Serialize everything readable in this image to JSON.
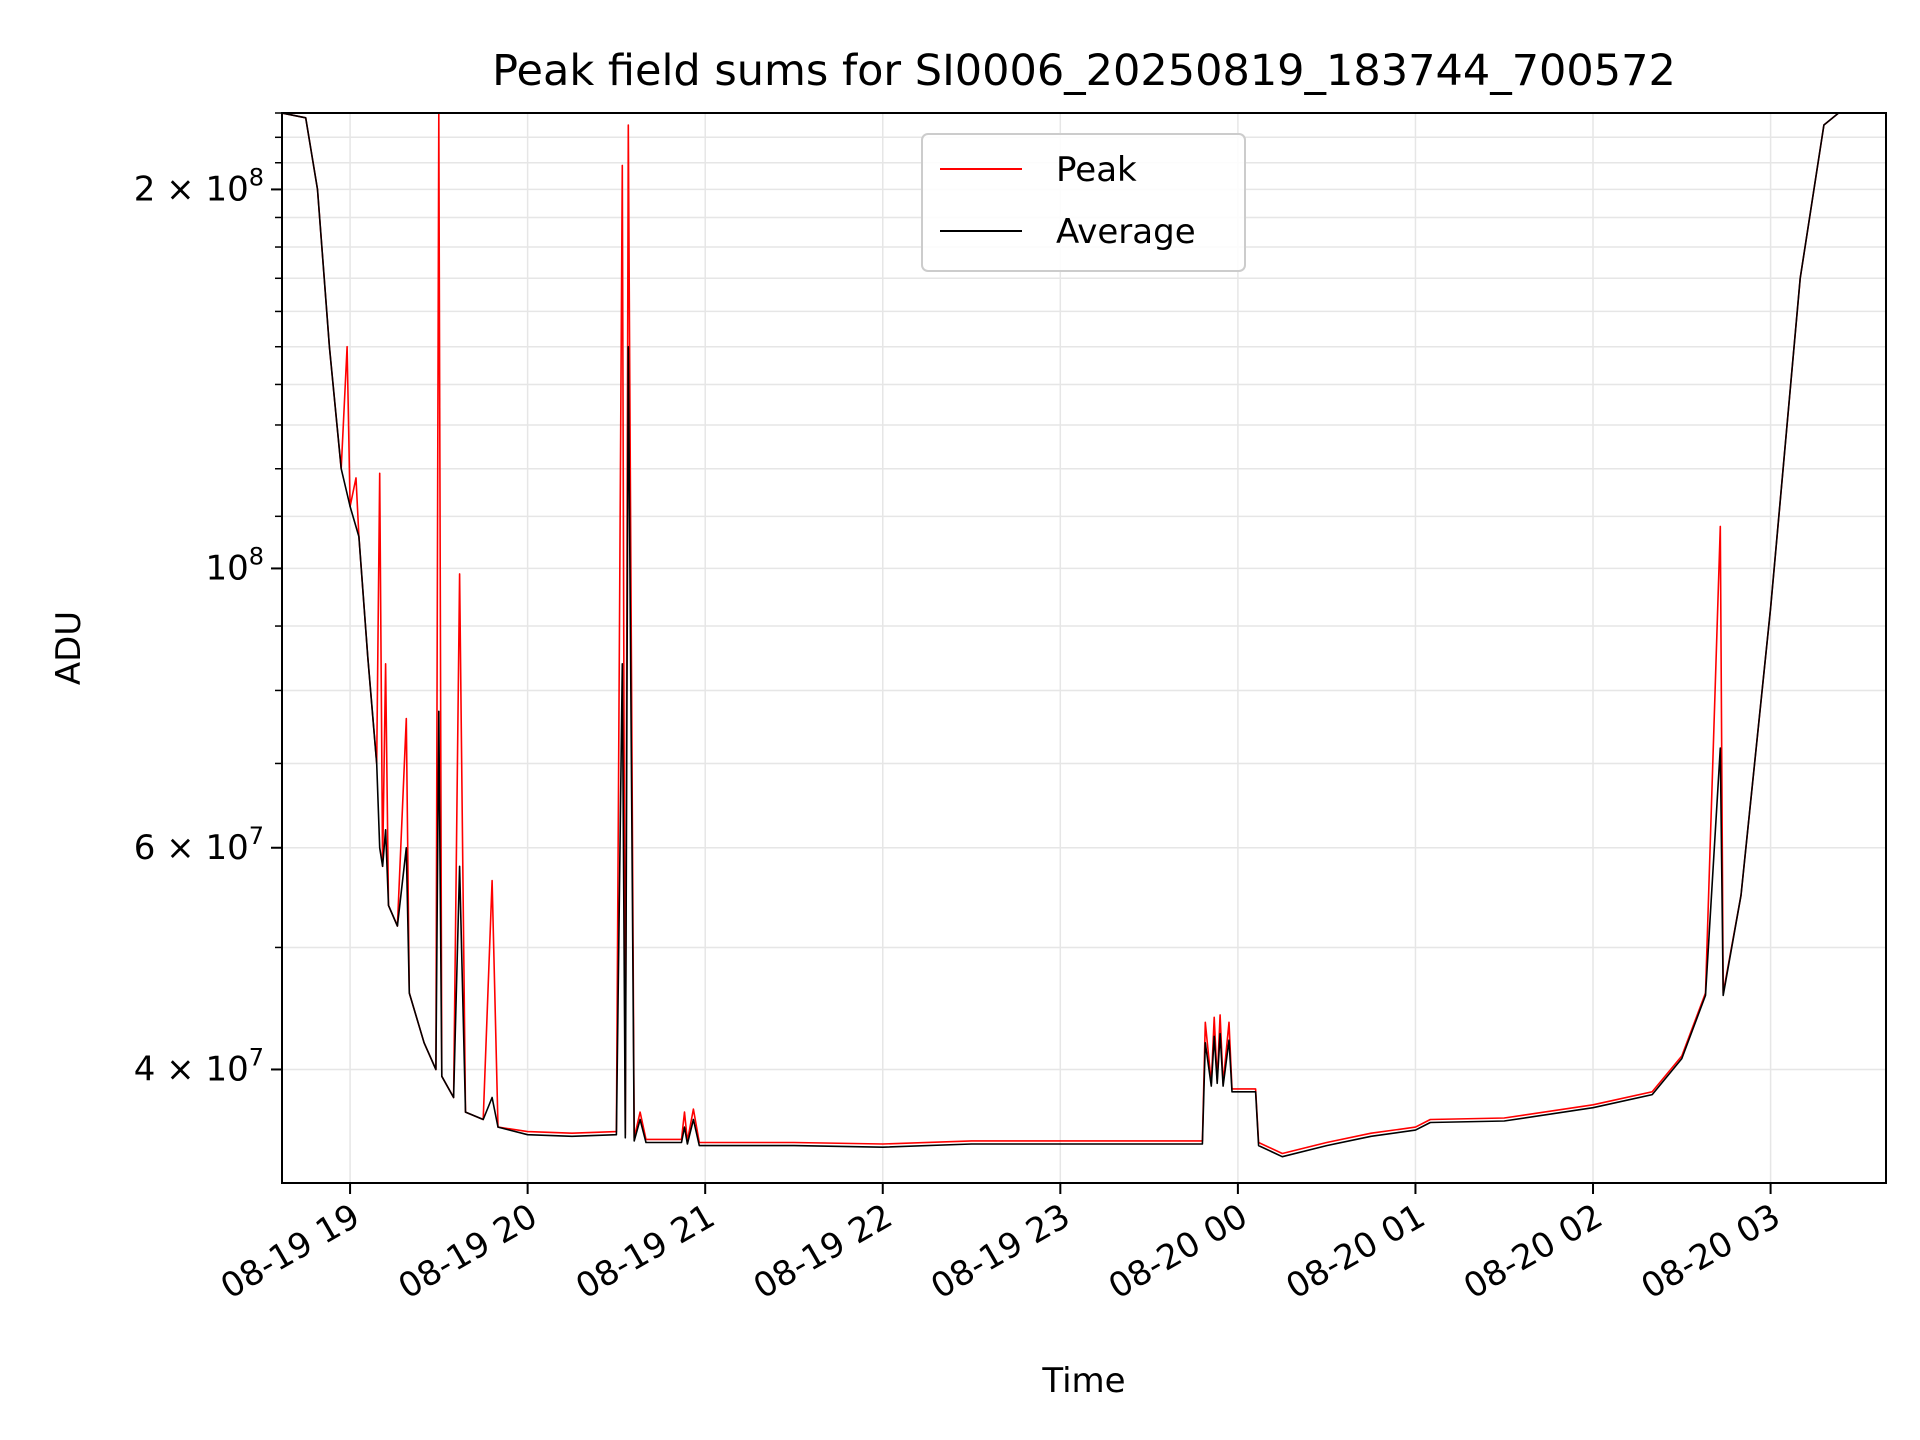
{
  "chart_data": {
    "type": "line",
    "title": "Peak field sums for SI0006_20250819_183744_700572",
    "xlabel": "Time",
    "ylabel": "ADU",
    "y_scale": "log",
    "ylim": [
      32500000,
      230000000
    ],
    "xlim": [
      "08-19 18:37",
      "08-20 03:39"
    ],
    "grid": true,
    "legend_position": "top-center",
    "x_ticks": [
      "08-19 19",
      "08-19 20",
      "08-19 21",
      "08-19 22",
      "08-19 23",
      "08-20 00",
      "08-20 01",
      "08-20 02",
      "08-20 03"
    ],
    "y_ticks": [
      {
        "value": 40000000,
        "mantissa": "4",
        "exponent": "7"
      },
      {
        "value": 60000000,
        "mantissa": "6",
        "exponent": "7"
      },
      {
        "value": 100000000,
        "mantissa": "",
        "exponent": "8"
      },
      {
        "value": 200000000,
        "mantissa": "2",
        "exponent": "8"
      }
    ],
    "series": [
      {
        "name": "Peak",
        "color": "#ff0000",
        "values": [
          [
            "08-19 18:37",
            230000000
          ],
          [
            "08-19 18:45",
            228000000
          ],
          [
            "08-19 18:49",
            200000000
          ],
          [
            "08-19 18:53",
            150000000
          ],
          [
            "08-19 18:57",
            120000000
          ],
          [
            "08-19 18:59",
            150000000
          ],
          [
            "08-19 19:00",
            112000000
          ],
          [
            "08-19 19:02",
            118000000
          ],
          [
            "08-19 19:03",
            106000000
          ],
          [
            "08-19 19:06",
            85000000
          ],
          [
            "08-19 19:09",
            70000000
          ],
          [
            "08-19 19:10",
            119000000
          ],
          [
            "08-19 19:11",
            58000000
          ],
          [
            "08-19 19:12",
            84000000
          ],
          [
            "08-19 19:13",
            54000000
          ],
          [
            "08-19 19:16",
            52000000
          ],
          [
            "08-19 19:19",
            76000000
          ],
          [
            "08-19 19:20",
            46000000
          ],
          [
            "08-19 19:25",
            42000000
          ],
          [
            "08-19 19:29",
            40000000
          ],
          [
            "08-19 19:30",
            230000000
          ],
          [
            "08-19 19:31",
            39500000
          ],
          [
            "08-19 19:35",
            38000000
          ],
          [
            "08-19 19:37",
            99000000
          ],
          [
            "08-19 19:39",
            37000000
          ],
          [
            "08-19 19:45",
            36500000
          ],
          [
            "08-19 19:48",
            56500000
          ],
          [
            "08-19 19:50",
            36000000
          ],
          [
            "08-19 20:00",
            35700000
          ],
          [
            "08-19 20:15",
            35600000
          ],
          [
            "08-19 20:30",
            35700000
          ],
          [
            "08-19 20:32",
            209000000
          ],
          [
            "08-19 20:33",
            35500000
          ],
          [
            "08-19 20:34",
            225000000
          ],
          [
            "08-19 20:36",
            35300000
          ],
          [
            "08-19 20:38",
            37000000
          ],
          [
            "08-19 20:40",
            35200000
          ],
          [
            "08-19 20:52",
            35200000
          ],
          [
            "08-19 20:53",
            37000000
          ],
          [
            "08-19 20:54",
            35100000
          ],
          [
            "08-19 20:56",
            37200000
          ],
          [
            "08-19 20:58",
            35000000
          ],
          [
            "08-19 21:30",
            35000000
          ],
          [
            "08-19 22:00",
            34900000
          ],
          [
            "08-19 22:30",
            35100000
          ],
          [
            "08-19 23:00",
            35100000
          ],
          [
            "08-19 23:48",
            35100000
          ],
          [
            "08-19 23:49",
            43600000
          ],
          [
            "08-19 23:51",
            39000000
          ],
          [
            "08-19 23:52",
            44000000
          ],
          [
            "08-19 23:53",
            39200000
          ],
          [
            "08-19 23:54",
            44200000
          ],
          [
            "08-19 23:55",
            39000000
          ],
          [
            "08-19 23:57",
            43600000
          ],
          [
            "08-19 23:58",
            38600000
          ],
          [
            "08-20 00:06",
            38600000
          ],
          [
            "08-20 00:07",
            35000000
          ],
          [
            "08-20 00:15",
            34300000
          ],
          [
            "08-20 00:30",
            35000000
          ],
          [
            "08-20 00:45",
            35600000
          ],
          [
            "08-20 01:00",
            36000000
          ],
          [
            "08-20 01:05",
            36500000
          ],
          [
            "08-20 01:30",
            36600000
          ],
          [
            "08-20 02:00",
            37500000
          ],
          [
            "08-20 02:20",
            38400000
          ],
          [
            "08-20 02:30",
            41000000
          ],
          [
            "08-20 02:38",
            46000000
          ],
          [
            "08-20 02:43",
            108000000
          ],
          [
            "08-20 02:44",
            46000000
          ],
          [
            "08-20 02:50",
            55000000
          ],
          [
            "08-20 03:00",
            93000000
          ],
          [
            "08-20 03:10",
            170000000
          ],
          [
            "08-20 03:18",
            225000000
          ],
          [
            "08-20 03:23",
            230000000
          ]
        ]
      },
      {
        "name": "Average",
        "color": "#000000",
        "values": [
          [
            "08-19 18:37",
            230000000
          ],
          [
            "08-19 18:45",
            228000000
          ],
          [
            "08-19 18:49",
            200000000
          ],
          [
            "08-19 18:53",
            150000000
          ],
          [
            "08-19 18:57",
            120000000
          ],
          [
            "08-19 19:00",
            112000000
          ],
          [
            "08-19 19:03",
            106000000
          ],
          [
            "08-19 19:06",
            85000000
          ],
          [
            "08-19 19:09",
            70000000
          ],
          [
            "08-19 19:10",
            60000000
          ],
          [
            "08-19 19:11",
            58000000
          ],
          [
            "08-19 19:12",
            62000000
          ],
          [
            "08-19 19:13",
            54000000
          ],
          [
            "08-19 19:16",
            52000000
          ],
          [
            "08-19 19:19",
            60000000
          ],
          [
            "08-19 19:20",
            46000000
          ],
          [
            "08-19 19:25",
            42000000
          ],
          [
            "08-19 19:29",
            40000000
          ],
          [
            "08-19 19:30",
            77000000
          ],
          [
            "08-19 19:31",
            39500000
          ],
          [
            "08-19 19:35",
            38000000
          ],
          [
            "08-19 19:37",
            58000000
          ],
          [
            "08-19 19:39",
            37000000
          ],
          [
            "08-19 19:45",
            36500000
          ],
          [
            "08-19 19:48",
            38000000
          ],
          [
            "08-19 19:50",
            36000000
          ],
          [
            "08-19 20:00",
            35500000
          ],
          [
            "08-19 20:15",
            35400000
          ],
          [
            "08-19 20:30",
            35500000
          ],
          [
            "08-19 20:32",
            84000000
          ],
          [
            "08-19 20:33",
            35300000
          ],
          [
            "08-19 20:34",
            150000000
          ],
          [
            "08-19 20:36",
            35100000
          ],
          [
            "08-19 20:38",
            36500000
          ],
          [
            "08-19 20:40",
            35000000
          ],
          [
            "08-19 20:52",
            35000000
          ],
          [
            "08-19 20:53",
            36000000
          ],
          [
            "08-19 20:54",
            34900000
          ],
          [
            "08-19 20:56",
            36500000
          ],
          [
            "08-19 20:58",
            34800000
          ],
          [
            "08-19 21:30",
            34800000
          ],
          [
            "08-19 22:00",
            34700000
          ],
          [
            "08-19 22:30",
            34900000
          ],
          [
            "08-19 23:00",
            34900000
          ],
          [
            "08-19 23:48",
            34900000
          ],
          [
            "08-19 23:49",
            42000000
          ],
          [
            "08-19 23:51",
            38800000
          ],
          [
            "08-19 23:52",
            42500000
          ],
          [
            "08-19 23:53",
            39000000
          ],
          [
            "08-19 23:54",
            42700000
          ],
          [
            "08-19 23:55",
            38800000
          ],
          [
            "08-19 23:57",
            42200000
          ],
          [
            "08-19 23:58",
            38400000
          ],
          [
            "08-20 00:06",
            38400000
          ],
          [
            "08-20 00:07",
            34800000
          ],
          [
            "08-20 00:15",
            34100000
          ],
          [
            "08-20 00:30",
            34800000
          ],
          [
            "08-20 00:45",
            35400000
          ],
          [
            "08-20 01:00",
            35800000
          ],
          [
            "08-20 01:05",
            36300000
          ],
          [
            "08-20 01:30",
            36400000
          ],
          [
            "08-20 02:00",
            37300000
          ],
          [
            "08-20 02:20",
            38200000
          ],
          [
            "08-20 02:30",
            40800000
          ],
          [
            "08-20 02:38",
            45800000
          ],
          [
            "08-20 02:43",
            72000000
          ],
          [
            "08-20 02:44",
            45800000
          ],
          [
            "08-20 02:50",
            55000000
          ],
          [
            "08-20 03:00",
            93000000
          ],
          [
            "08-20 03:10",
            170000000
          ],
          [
            "08-20 03:18",
            225000000
          ],
          [
            "08-20 03:23",
            230000000
          ]
        ]
      }
    ]
  }
}
